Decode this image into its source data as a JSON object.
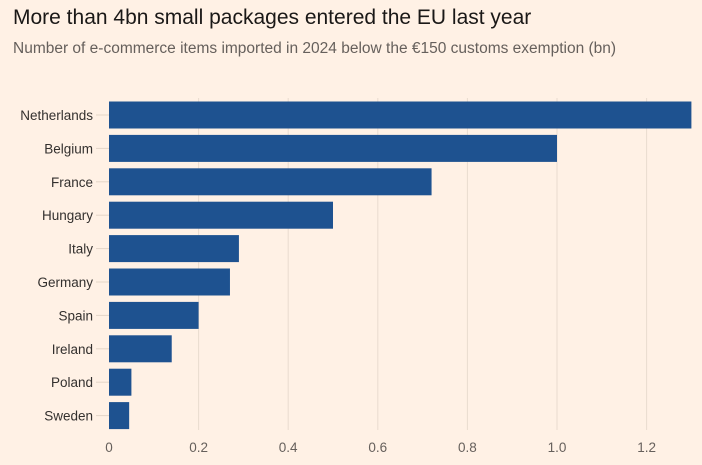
{
  "title": "More than 4bn small packages entered the EU last year",
  "subtitle": "Number of e-commerce items imported in 2024 below the €150 customs exemption (bn)",
  "chart_data": {
    "type": "bar",
    "orientation": "horizontal",
    "title": "More than 4bn small packages entered the EU last year",
    "subtitle": "Number of e-commerce items imported in 2024 below the €150 customs exemption (bn)",
    "categories": [
      "Netherlands",
      "Belgium",
      "France",
      "Hungary",
      "Italy",
      "Germany",
      "Spain",
      "Ireland",
      "Poland",
      "Sweden"
    ],
    "values": [
      1.3,
      1.0,
      0.72,
      0.5,
      0.29,
      0.27,
      0.2,
      0.14,
      0.05,
      0.045
    ],
    "xlim": [
      0,
      1.3
    ],
    "xticks": [
      0,
      0.2,
      0.4,
      0.6,
      0.8,
      1.0,
      1.2
    ],
    "xtick_labels": [
      "0",
      "0.2",
      "0.4",
      "0.6",
      "0.8",
      "1.0",
      "1.2"
    ],
    "grid": "vertical",
    "bar_color": "#1e5290",
    "background": "#fff1e5"
  }
}
